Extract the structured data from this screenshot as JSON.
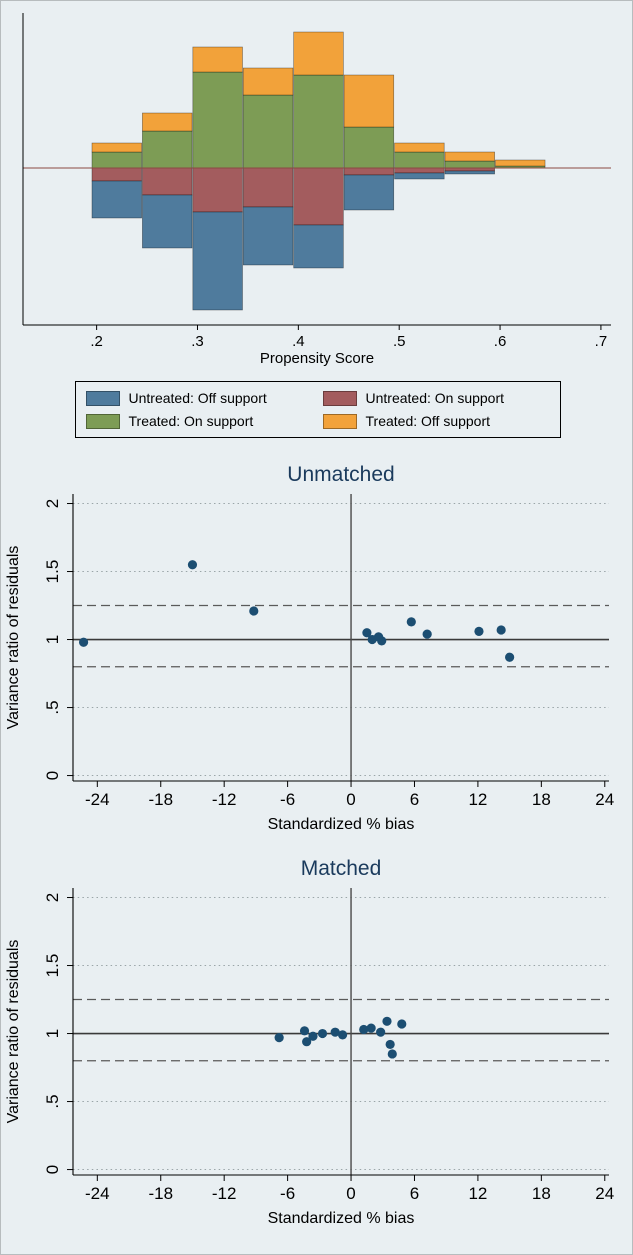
{
  "page": {
    "background": "#e9eff2",
    "border_color": "#b7bcbe"
  },
  "colors": {
    "untreated_off_support": "#4f7b9d",
    "untreated_on_support": "#a35c5e",
    "treated_on_support": "#7d9c55",
    "treated_off_support": "#f2a23a",
    "scatter_dot": "#1c4e72",
    "title_text": "#1a3a5c",
    "zero_refline": "#8a4a42",
    "grid_dotted": "#9aa5a8",
    "ref_dashed": "#5a5a5a",
    "ref_solid": "#3a3a3a"
  },
  "chart_data": [
    {
      "id": "psgraph",
      "type": "bar",
      "subtype": "stacked-propensity-histogram",
      "xlabel": "Propensity Score",
      "xlim": [
        0.127,
        0.71
      ],
      "ylim": [
        -157,
        155
      ],
      "x_ticks": [
        0.2,
        0.3,
        0.4,
        0.5,
        0.6,
        0.7
      ],
      "x_tick_labels": [
        ".2",
        ".3",
        ".4",
        ".5",
        ".6",
        ".7"
      ],
      "bin_width": 0.05,
      "note": "Heights in relative-frequency units; treated plotted above the zero line, untreated below.",
      "bins": [
        {
          "x0": 0.195,
          "treated_on": 16,
          "treated_off": 9,
          "untreated_on": 13,
          "untreated_off": 37
        },
        {
          "x0": 0.245,
          "treated_on": 37,
          "treated_off": 18,
          "untreated_on": 27,
          "untreated_off": 53
        },
        {
          "x0": 0.295,
          "treated_on": 96,
          "treated_off": 25,
          "untreated_on": 44,
          "untreated_off": 98
        },
        {
          "x0": 0.345,
          "treated_on": 73,
          "treated_off": 27,
          "untreated_on": 39,
          "untreated_off": 58
        },
        {
          "x0": 0.395,
          "treated_on": 93,
          "treated_off": 43,
          "untreated_on": 57,
          "untreated_off": 43
        },
        {
          "x0": 0.445,
          "treated_on": 41,
          "treated_off": 52,
          "untreated_on": 7,
          "untreated_off": 35
        },
        {
          "x0": 0.495,
          "treated_on": 16,
          "treated_off": 9,
          "untreated_on": 5,
          "untreated_off": 6
        },
        {
          "x0": 0.545,
          "treated_on": 7,
          "treated_off": 9,
          "untreated_on": 3,
          "untreated_off": 3
        },
        {
          "x0": 0.595,
          "treated_on": 2,
          "treated_off": 6,
          "untreated_on": 0,
          "untreated_off": 0
        }
      ],
      "legend": [
        {
          "label": "Untreated: Off support",
          "color_key": "untreated_off_support"
        },
        {
          "label": "Untreated: On support",
          "color_key": "untreated_on_support"
        },
        {
          "label": "Treated: On support",
          "color_key": "treated_on_support"
        },
        {
          "label": "Treated: Off support",
          "color_key": "treated_off_support"
        }
      ]
    },
    {
      "id": "unmatched",
      "type": "scatter",
      "title": "Unmatched",
      "xlabel": "Standardized % bias",
      "ylabel": "Variance ratio of residuals",
      "xlim": [
        -26.3,
        24.4
      ],
      "ylim": [
        -0.04,
        2.07
      ],
      "x_ticks": [
        -24,
        -18,
        -12,
        -6,
        0,
        6,
        12,
        18,
        24
      ],
      "y_ticks": [
        0,
        0.5,
        1,
        1.5,
        2
      ],
      "y_tick_labels": [
        "0",
        ".5",
        "1",
        "1.5",
        "2"
      ],
      "gridlines_dotted_y": [
        0,
        0.5,
        1.5,
        2
      ],
      "reflines_dashed_y": [
        0.8,
        1.25
      ],
      "refline_solid_y": 1,
      "refline_solid_x": 0,
      "points": [
        {
          "x": -25.3,
          "y": 0.98
        },
        {
          "x": -15.0,
          "y": 1.55
        },
        {
          "x": -9.2,
          "y": 1.21
        },
        {
          "x": 1.5,
          "y": 1.05
        },
        {
          "x": 2.0,
          "y": 1.0
        },
        {
          "x": 2.6,
          "y": 1.02
        },
        {
          "x": 2.9,
          "y": 0.99
        },
        {
          "x": 5.7,
          "y": 1.13
        },
        {
          "x": 7.2,
          "y": 1.04
        },
        {
          "x": 12.1,
          "y": 1.06
        },
        {
          "x": 14.2,
          "y": 1.07
        },
        {
          "x": 15.0,
          "y": 0.87
        }
      ]
    },
    {
      "id": "matched",
      "type": "scatter",
      "title": "Matched",
      "xlabel": "Standardized % bias",
      "ylabel": "Variance ratio of residuals",
      "xlim": [
        -26.3,
        24.4
      ],
      "ylim": [
        -0.04,
        2.07
      ],
      "x_ticks": [
        -24,
        -18,
        -12,
        -6,
        0,
        6,
        12,
        18,
        24
      ],
      "y_ticks": [
        0,
        0.5,
        1,
        1.5,
        2
      ],
      "y_tick_labels": [
        "0",
        ".5",
        "1",
        "1.5",
        "2"
      ],
      "gridlines_dotted_y": [
        0,
        0.5,
        1.5,
        2
      ],
      "reflines_dashed_y": [
        0.8,
        1.25
      ],
      "refline_solid_y": 1,
      "refline_solid_x": 0,
      "points": [
        {
          "x": -6.8,
          "y": 0.97
        },
        {
          "x": -4.4,
          "y": 1.02
        },
        {
          "x": -4.2,
          "y": 0.94
        },
        {
          "x": -3.6,
          "y": 0.98
        },
        {
          "x": -2.7,
          "y": 1.0
        },
        {
          "x": -1.5,
          "y": 1.01
        },
        {
          "x": -0.8,
          "y": 0.99
        },
        {
          "x": 1.2,
          "y": 1.03
        },
        {
          "x": 1.9,
          "y": 1.04
        },
        {
          "x": 2.8,
          "y": 1.01
        },
        {
          "x": 3.4,
          "y": 1.09
        },
        {
          "x": 3.7,
          "y": 0.92
        },
        {
          "x": 3.9,
          "y": 0.85
        },
        {
          "x": 4.8,
          "y": 1.07
        }
      ]
    }
  ]
}
